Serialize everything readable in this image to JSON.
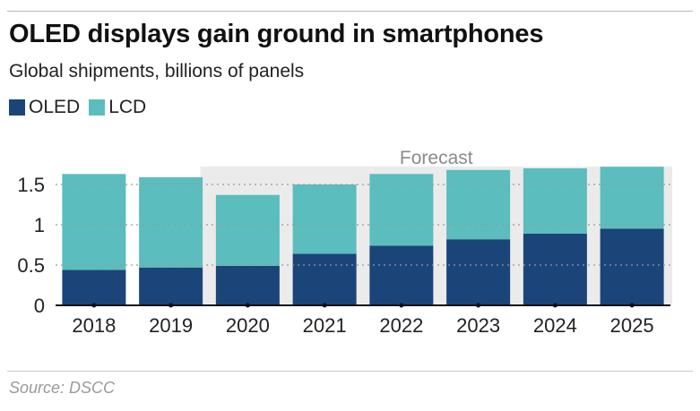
{
  "title": "OLED displays gain ground in smartphones",
  "subtitle": "Global shipments, billions of panels",
  "source": "Source: DSCC",
  "colors": {
    "oled": "#1b4479",
    "lcd": "#5bbdbd",
    "forecast_band": "#ebebeb",
    "grid": "#9a9a9a"
  },
  "legend": [
    {
      "label": "OLED",
      "color": "#1b4479"
    },
    {
      "label": "LCD",
      "color": "#5bbdbd"
    }
  ],
  "chart_data": {
    "type": "bar",
    "stacked": true,
    "categories": [
      "2018",
      "2019",
      "2020",
      "2021",
      "2022",
      "2023",
      "2024",
      "2025"
    ],
    "series": [
      {
        "name": "OLED",
        "values": [
          0.44,
          0.47,
          0.49,
          0.64,
          0.74,
          0.82,
          0.89,
          0.95
        ]
      },
      {
        "name": "LCD",
        "values": [
          1.19,
          1.12,
          0.88,
          0.86,
          0.89,
          0.86,
          0.81,
          0.77
        ]
      }
    ],
    "ylim": [
      0,
      1.7
    ],
    "yticks": [
      {
        "value": 0,
        "label": "0"
      },
      {
        "value": 0.5,
        "label": "0.5"
      },
      {
        "value": 1,
        "label": "1"
      },
      {
        "value": 1.5,
        "label": "1.5"
      }
    ],
    "annotation": {
      "label": "Forecast",
      "from": "2020",
      "to": "2025"
    },
    "grid": "horizontal dotted",
    "legend_position": "top-left"
  }
}
